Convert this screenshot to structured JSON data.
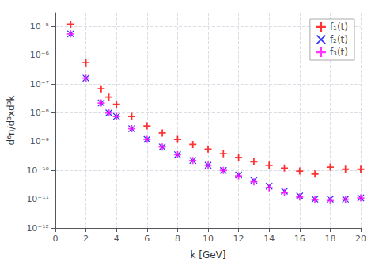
{
  "chart_data": {
    "type": "scatter",
    "xlabel": "k [GeV]",
    "ylabel": "d⁶n/d³xd³k",
    "log": "y",
    "grid": true,
    "legend": "upper right",
    "xlim": [
      0,
      20
    ],
    "xticks": [
      0,
      2,
      4,
      6,
      8,
      10,
      12,
      14,
      16,
      18,
      20
    ],
    "ylim": [
      1e-12,
      3e-05
    ],
    "yticks": [
      {
        "value": 1e-12,
        "label": "10⁻¹²"
      },
      {
        "value": 1e-11,
        "label": "10⁻¹¹"
      },
      {
        "value": 1e-10,
        "label": "10⁻¹⁰"
      },
      {
        "value": 1e-09,
        "label": "10⁻⁹"
      },
      {
        "value": 1e-08,
        "label": "10⁻⁸"
      },
      {
        "value": 1e-07,
        "label": "10⁻⁷"
      },
      {
        "value": 1e-06,
        "label": "10⁻⁶"
      },
      {
        "value": 1e-05,
        "label": "10⁻⁵"
      }
    ],
    "x": [
      1.0,
      2.0,
      3.0,
      3.5,
      4.0,
      5.0,
      6.0,
      7.0,
      8.0,
      9.0,
      10.0,
      11.0,
      12.0,
      13.0,
      14.0,
      15.0,
      16.0,
      17.0,
      18.0,
      19.0,
      20.0
    ],
    "series": [
      {
        "name": "f₁(t)",
        "color": "#ff0000",
        "marker": "plus",
        "values": [
          1.2e-05,
          5.5e-07,
          6.8e-08,
          3.5e-08,
          2e-08,
          7.5e-09,
          3.5e-09,
          2e-09,
          1.2e-09,
          8e-10,
          5.5e-10,
          3.8e-10,
          2.8e-10,
          2e-10,
          1.5e-10,
          1.2e-10,
          9.5e-11,
          7.5e-11,
          1.3e-10,
          1.1e-10,
          1.1e-10
        ]
      },
      {
        "name": "f₂(t)",
        "color": "#0000ff",
        "marker": "cross",
        "values": [
          5.5e-06,
          1.6e-07,
          2.2e-08,
          1e-08,
          7.5e-09,
          2.8e-09,
          1.2e-09,
          6.5e-10,
          3.5e-10,
          2.2e-10,
          1.5e-10,
          1e-10,
          7e-11,
          4.5e-11,
          2.8e-11,
          1.9e-11,
          1.3e-11,
          1e-11,
          1e-11,
          1e-11,
          1.1e-11
        ]
      },
      {
        "name": "f₃(t)",
        "color": "#ff00ff",
        "marker": "plus",
        "values": [
          5.5e-06,
          1.6e-07,
          2.2e-08,
          1e-08,
          7.5e-09,
          2.8e-09,
          1.2e-09,
          6.5e-10,
          3.5e-10,
          2.2e-10,
          1.5e-10,
          1e-10,
          6.5e-11,
          4e-11,
          2.5e-11,
          1.7e-11,
          1.2e-11,
          9.5e-12,
          9e-12,
          1e-11,
          1.1e-11
        ]
      }
    ]
  }
}
